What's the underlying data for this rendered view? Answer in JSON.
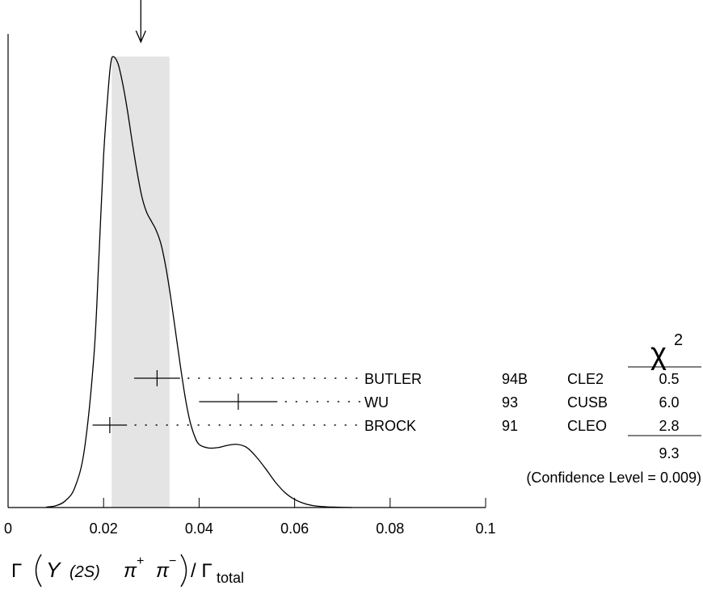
{
  "chart_data": {
    "type": "ideogram",
    "xlim": [
      0,
      0.1
    ],
    "x_ticks": [
      "0",
      "0.02",
      "0.04",
      "0.06",
      "0.08",
      "0.1"
    ],
    "x_tick_values": [
      0,
      0.02,
      0.04,
      0.06,
      0.08,
      0.1
    ],
    "xlabel_parts": {
      "gamma": "Γ",
      "upsilon": "Υ",
      "state": "(2S)",
      "pi": "π",
      "plus": "+",
      "minus": "−",
      "slash": "/",
      "sub": "total"
    },
    "weighted_average": 0.0278,
    "average_band": [
      0.0217,
      0.0338
    ],
    "density_curve": [
      [
        0.008,
        0.001
      ],
      [
        0.01,
        0.004
      ],
      [
        0.012,
        0.015
      ],
      [
        0.014,
        0.045
      ],
      [
        0.016,
        0.13
      ],
      [
        0.018,
        0.34
      ],
      [
        0.019,
        0.55
      ],
      [
        0.02,
        0.78
      ],
      [
        0.021,
        0.93
      ],
      [
        0.0215,
        0.985
      ],
      [
        0.022,
        1.0
      ],
      [
        0.023,
        0.985
      ],
      [
        0.024,
        0.94
      ],
      [
        0.025,
        0.88
      ],
      [
        0.026,
        0.81
      ],
      [
        0.027,
        0.745
      ],
      [
        0.028,
        0.69
      ],
      [
        0.029,
        0.655
      ],
      [
        0.03,
        0.635
      ],
      [
        0.031,
        0.615
      ],
      [
        0.032,
        0.585
      ],
      [
        0.033,
        0.535
      ],
      [
        0.034,
        0.47
      ],
      [
        0.035,
        0.395
      ],
      [
        0.036,
        0.32
      ],
      [
        0.037,
        0.25
      ],
      [
        0.038,
        0.195
      ],
      [
        0.039,
        0.16
      ],
      [
        0.04,
        0.14
      ],
      [
        0.042,
        0.132
      ],
      [
        0.044,
        0.133
      ],
      [
        0.046,
        0.138
      ],
      [
        0.048,
        0.14
      ],
      [
        0.05,
        0.133
      ],
      [
        0.052,
        0.112
      ],
      [
        0.054,
        0.085
      ],
      [
        0.056,
        0.056
      ],
      [
        0.058,
        0.033
      ],
      [
        0.06,
        0.018
      ],
      [
        0.062,
        0.009
      ],
      [
        0.064,
        0.004
      ],
      [
        0.066,
        0.002
      ],
      [
        0.068,
        0.001
      ],
      [
        0.072,
        0.0
      ]
    ],
    "measurements": [
      {
        "name": "BUTLER",
        "year": "94B",
        "experiment": "CLE2",
        "value": 0.0312,
        "error": 0.0048,
        "chi2": "0.5"
      },
      {
        "name": "WU",
        "year": "93",
        "experiment": "CUSB",
        "value": 0.0482,
        "error": 0.0082,
        "chi2": "6.0"
      },
      {
        "name": "BROCK",
        "year": "91",
        "experiment": "CLEO",
        "value": 0.0213,
        "error": 0.0036,
        "chi2": "2.8"
      }
    ],
    "chi2_header": "χ",
    "chi2_header_sup": "2",
    "chi2_total": "9.3",
    "confidence_text": "(Confidence Level = 0.009)"
  }
}
